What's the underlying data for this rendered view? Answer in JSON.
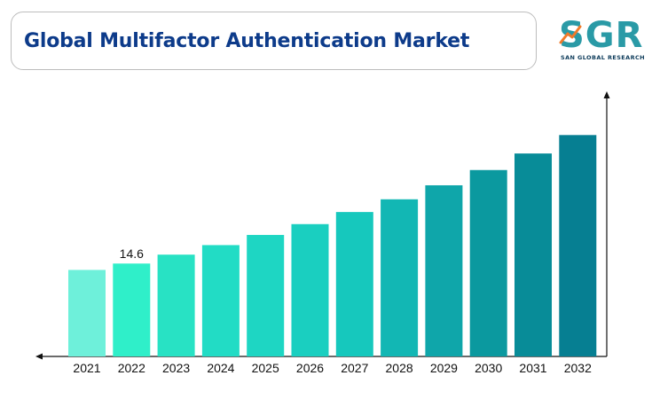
{
  "header": {
    "title": "Global Multifactor Authentication Market"
  },
  "logo": {
    "letters": "SGR",
    "tagline": "SAN GLOBAL RESEARCH"
  },
  "chart_data": {
    "type": "bar",
    "title": "Global Multifactor Authentication Market",
    "categories": [
      "2021",
      "2022",
      "2023",
      "2024",
      "2025",
      "2026",
      "2027",
      "2028",
      "2029",
      "2030",
      "2031",
      "2032"
    ],
    "values": [
      13.6,
      14.6,
      16.0,
      17.5,
      19.1,
      20.8,
      22.7,
      24.7,
      26.9,
      29.3,
      31.9,
      34.8
    ],
    "data_labels": [
      {
        "index": 1,
        "text": "14.6"
      }
    ],
    "xlabel": "",
    "ylabel": "",
    "ylim": [
      0,
      40
    ],
    "grid": false,
    "colors": [
      "#6ef0da",
      "#2fefc9",
      "#28e2c4",
      "#22dcc5",
      "#1ed6c3",
      "#1acfc0",
      "#16c8bd",
      "#12b7b4",
      "#0fa6aa",
      "#0b999f",
      "#088c98",
      "#067f92"
    ],
    "axis_color": "#111111"
  }
}
